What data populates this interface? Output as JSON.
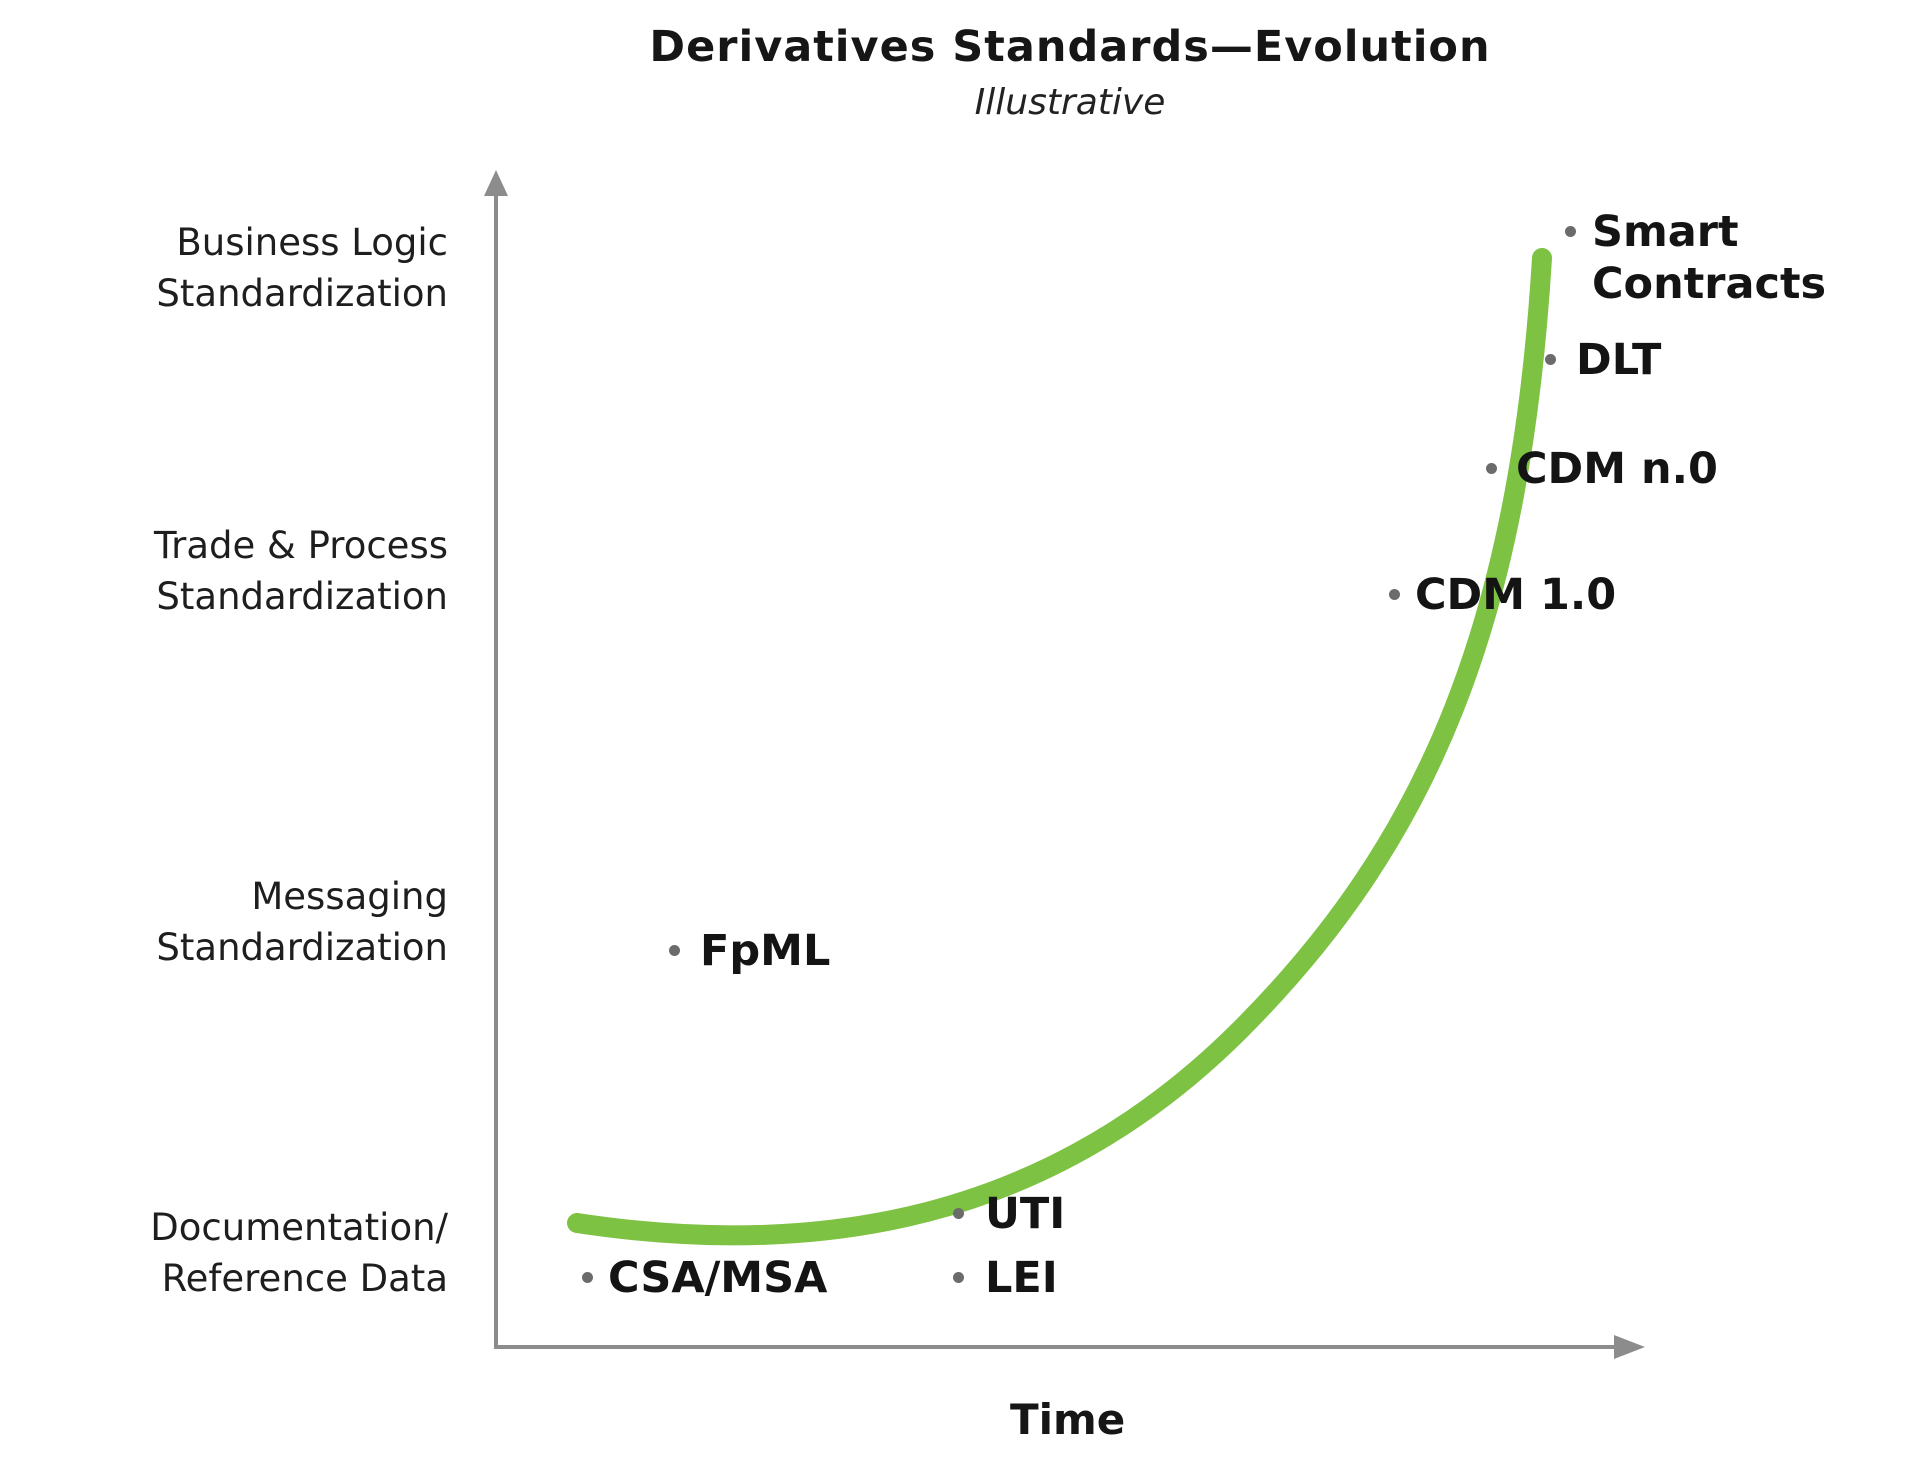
{
  "title": "Derivatives Standards—Evolution",
  "subtitle": "Illustrative",
  "x_axis_label": "Time",
  "y_axis_levels": [
    {
      "line1": "Business Logic",
      "line2": "Standardization"
    },
    {
      "line1": "Trade & Process",
      "line2": "Standardization"
    },
    {
      "line1": "Messaging",
      "line2": "Standardization"
    },
    {
      "line1": "Documentation/",
      "line2": "Reference Data"
    }
  ],
  "items": [
    {
      "line1": "Smart",
      "line2": "Contracts"
    },
    {
      "line1": "DLT"
    },
    {
      "line1": "CDM n.0"
    },
    {
      "line1": "CDM 1.0"
    },
    {
      "line1": "FpML"
    },
    {
      "line1": "UTI"
    },
    {
      "line1": "CSA/MSA"
    },
    {
      "line1": "LEI"
    }
  ],
  "colors": {
    "curve": "#7dc242",
    "axis": "#8c8c8c",
    "dot": "#6b6b6b",
    "text": "#1a1a1a"
  }
}
